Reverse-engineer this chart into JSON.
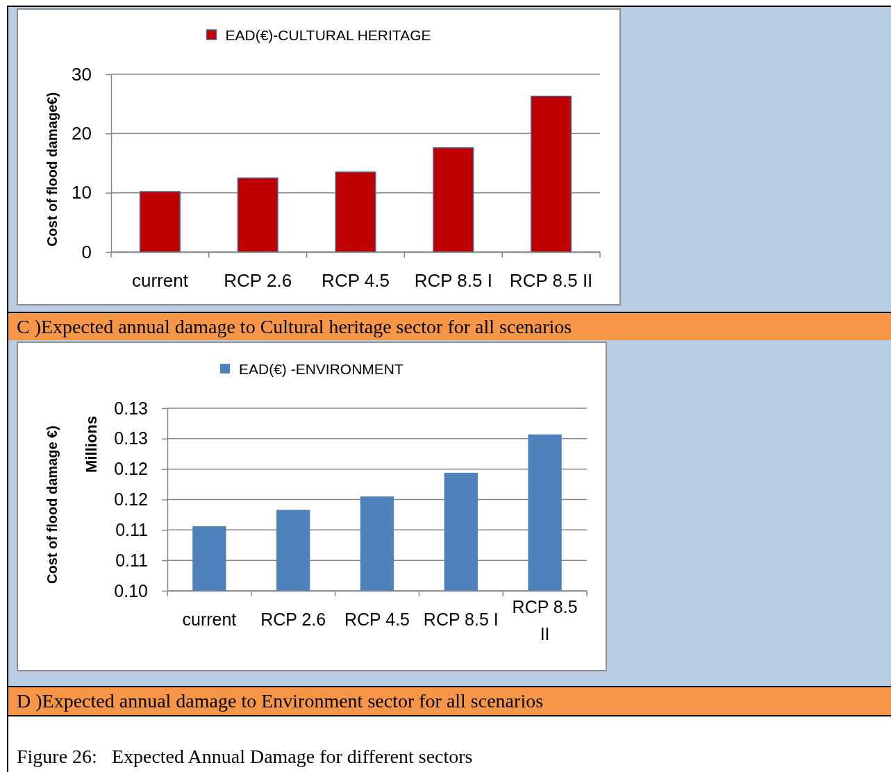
{
  "chart_data": [
    {
      "type": "bar",
      "categories": [
        "current",
        "RCP 2.6",
        "RCP 4.5",
        "RCP 8.5 I",
        "RCP 8.5 II"
      ],
      "series": [
        {
          "name": "EAD(€)-CULTURAL HERITAGE",
          "color": "#c00000",
          "values": [
            10.2,
            12.5,
            13.5,
            17.6,
            26.3
          ]
        }
      ],
      "ylabel": "Cost of flood damage€)",
      "ylim": [
        0,
        30
      ],
      "yticks": [
        0,
        10,
        20,
        30
      ],
      "grid": "y",
      "legend": "top",
      "annotations": [
        "C )Expected annual damage to Cultural heritage sector for all scenarios"
      ]
    },
    {
      "type": "bar",
      "categories": [
        "current",
        "RCP 2.6",
        "RCP 4.5",
        "RCP 8.5 I",
        "RCP 8.5 II"
      ],
      "series": [
        {
          "name": "EAD(€) -ENVIRONMENT",
          "color": "#4f81bd",
          "values": [
            0.1106,
            0.1133,
            0.1155,
            0.1194,
            0.1257
          ]
        }
      ],
      "ylabel": "Cost of flood damage €)",
      "ylim": [
        0.1,
        0.13
      ],
      "yticks": [
        {
          "value": 0.1,
          "label": "0.10"
        },
        {
          "value": 0.105,
          "label": "0.11"
        },
        0.11,
        {
          "value": 0.115,
          "label": "0.12"
        },
        0.12,
        {
          "value": 0.125,
          "label": "0.13"
        },
        0.13
      ],
      "grid": "y",
      "legend": "top",
      "annotations": [
        "Millions",
        "D )Expected annual damage to Environment sector for all scenarios",
        "Figure 26:   Expected Annual Damage for different sectors"
      ]
    }
  ]
}
